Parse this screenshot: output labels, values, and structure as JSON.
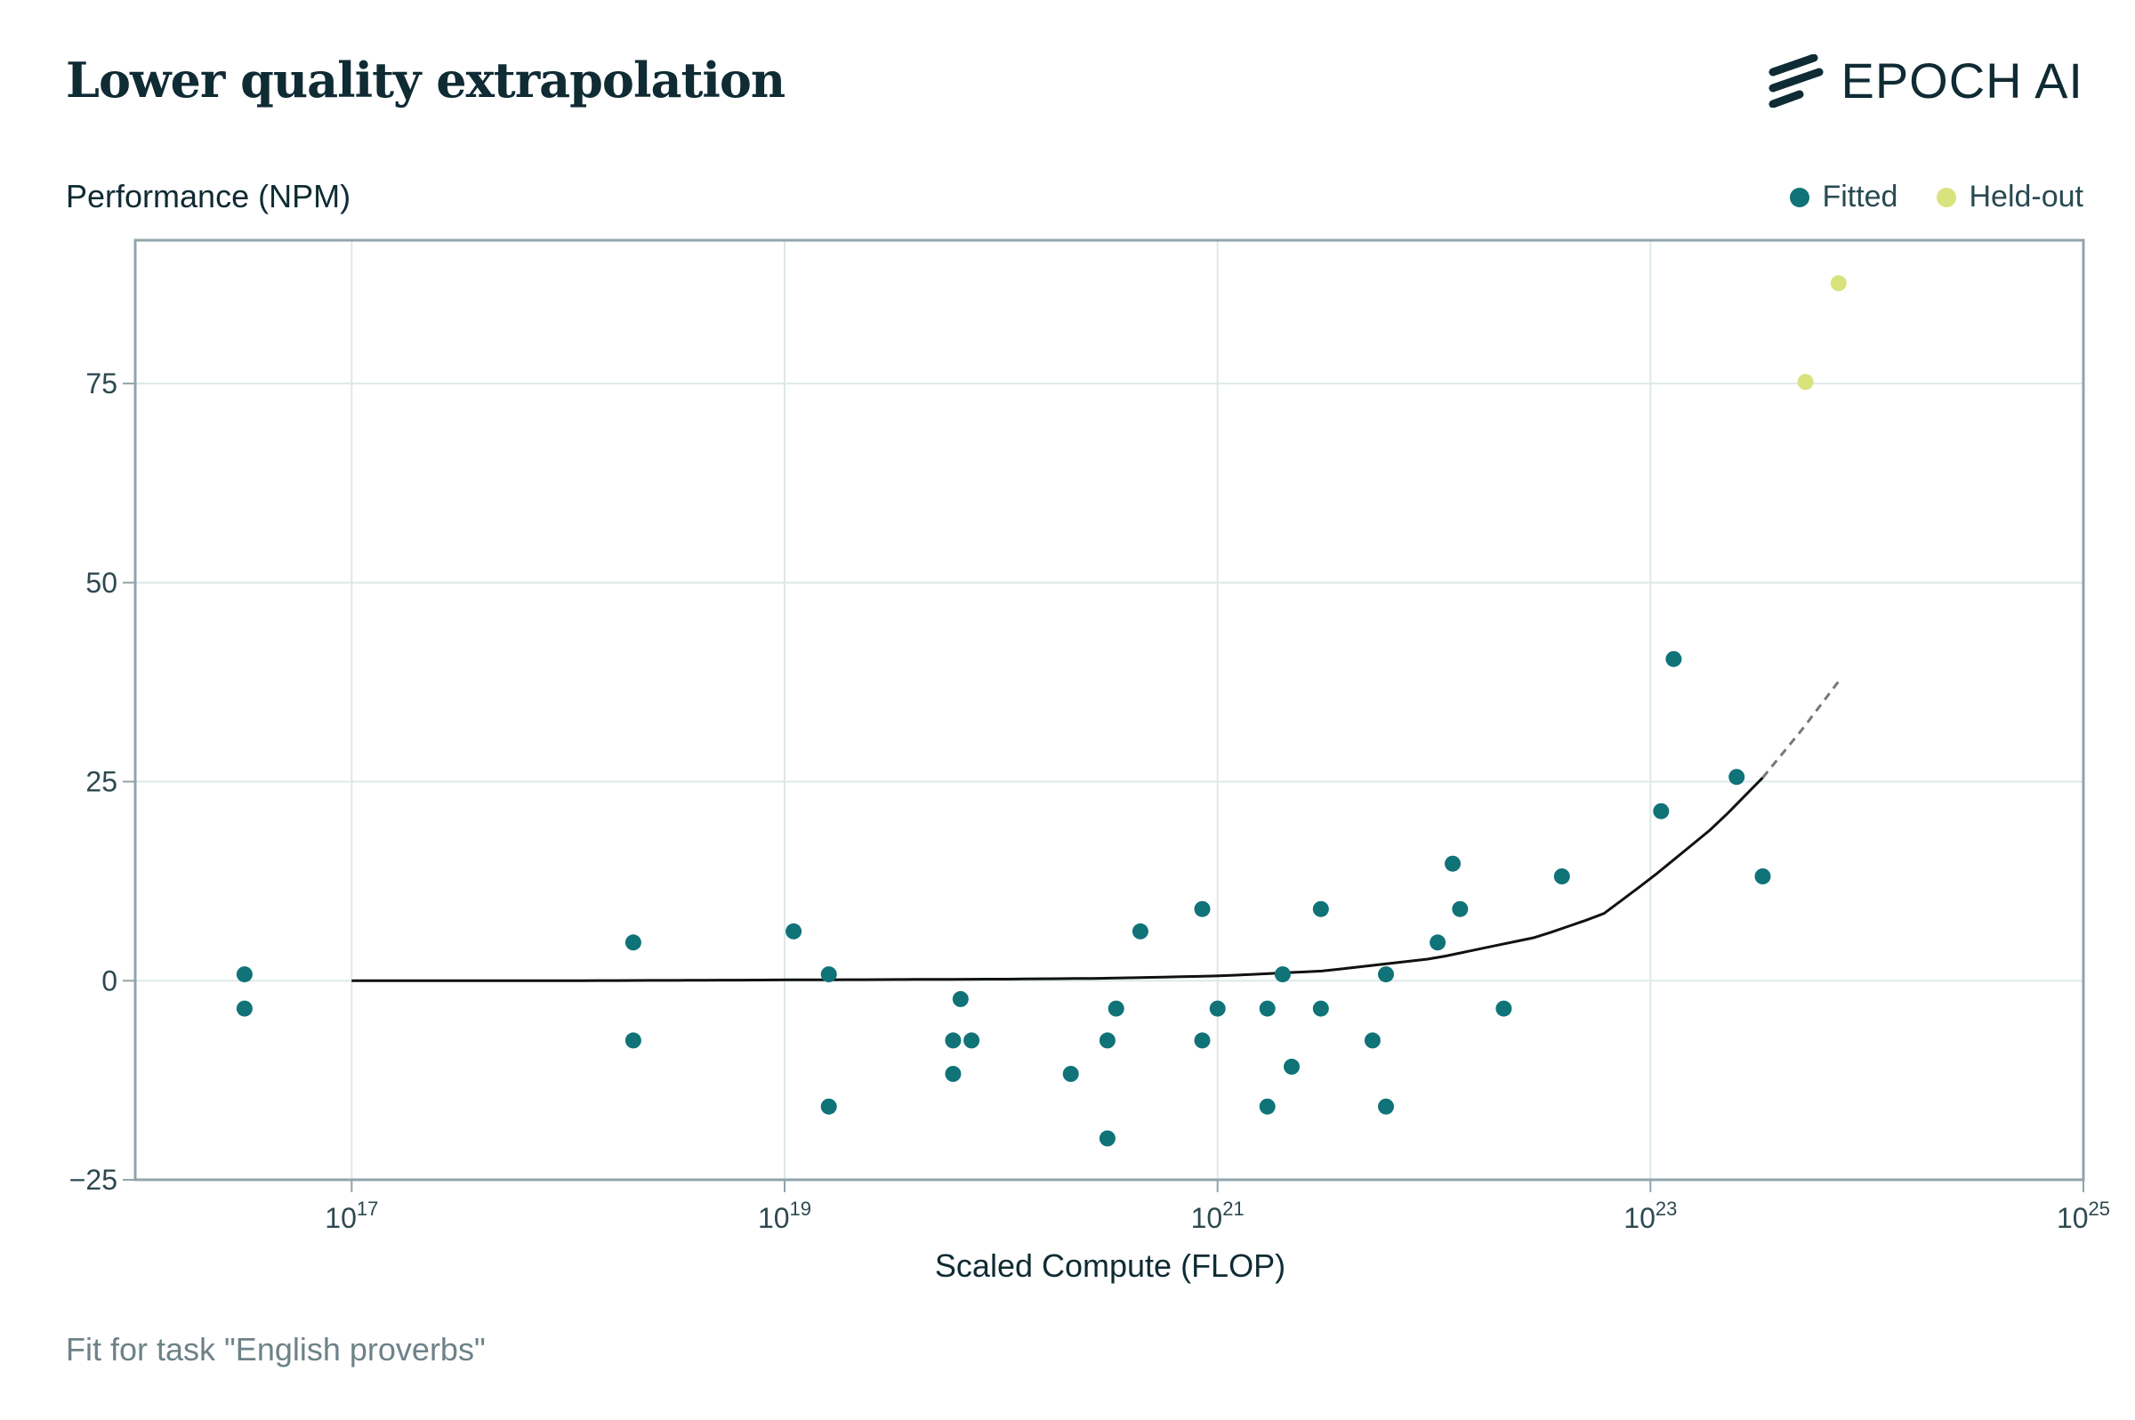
{
  "header": {
    "title": "Lower quality extrapolation",
    "brand": "EPOCH AI"
  },
  "caption": "Fit for task \"English proverbs\"",
  "colors": {
    "fitted": "#0f7378",
    "held_out": "#d8e37e",
    "curve": "#111111",
    "extrapolation": "#777777",
    "grid": "#dde8e8",
    "axis": "#90a4ab"
  },
  "chart_data": {
    "type": "scatter",
    "title": "Lower quality extrapolation",
    "xlabel": "Scaled Compute (FLOP)",
    "ylabel": "Performance (NPM)",
    "x_scale": "log",
    "xlim": [
      1e+16,
      1e+25
    ],
    "ylim": [
      -25,
      93
    ],
    "x_ticks": [
      1e+17,
      1e+19,
      1e+21,
      1e+23,
      1e+25
    ],
    "x_tick_labels": [
      {
        "base": "10",
        "exp": "17"
      },
      {
        "base": "10",
        "exp": "19"
      },
      {
        "base": "10",
        "exp": "21"
      },
      {
        "base": "10",
        "exp": "23"
      },
      {
        "base": "10",
        "exp": "25"
      }
    ],
    "y_ticks": [
      -25,
      0,
      25,
      50,
      75
    ],
    "y_tick_labels": [
      "−25",
      "0",
      "25",
      "50",
      "75"
    ],
    "grid": true,
    "legend_position": "top-right",
    "series": [
      {
        "name": "Fitted",
        "color": "#0f7378",
        "points": [
          [
            3.2e+16,
            0.8
          ],
          [
            3.2e+16,
            -3.5
          ],
          [
            2e+18,
            4.8
          ],
          [
            2e+18,
            -7.5
          ],
          [
            1.1e+19,
            6.2
          ],
          [
            1.6e+19,
            0.8
          ],
          [
            1.6e+19,
            -15.8
          ],
          [
            6.5e+19,
            -2.3
          ],
          [
            6e+19,
            -7.5
          ],
          [
            7.3e+19,
            -7.5
          ],
          [
            6e+19,
            -11.7
          ],
          [
            2.1e+20,
            -11.7
          ],
          [
            3.1e+20,
            -7.5
          ],
          [
            3.4e+20,
            -3.5
          ],
          [
            4.4e+20,
            6.2
          ],
          [
            3.1e+20,
            -19.8
          ],
          [
            8.5e+20,
            9.0
          ],
          [
            8.5e+20,
            -7.5
          ],
          [
            1e+21,
            -3.5
          ],
          [
            1.7e+21,
            -3.5
          ],
          [
            2e+21,
            0.8
          ],
          [
            2.2e+21,
            -10.8
          ],
          [
            1.7e+21,
            -15.8
          ],
          [
            3e+21,
            9.0
          ],
          [
            3e+21,
            -3.5
          ],
          [
            5.2e+21,
            -7.5
          ],
          [
            6e+21,
            0.8
          ],
          [
            6e+21,
            -15.8
          ],
          [
            1.04e+22,
            4.8
          ],
          [
            1.22e+22,
            14.7
          ],
          [
            1.32e+22,
            9.0
          ],
          [
            2.1e+22,
            -3.5
          ],
          [
            3.9e+22,
            13.1
          ],
          [
            1.12e+23,
            21.3
          ],
          [
            1.28e+23,
            40.4
          ],
          [
            2.5e+23,
            25.6
          ],
          [
            3.3e+23,
            13.1
          ]
        ]
      },
      {
        "name": "Held-out",
        "color": "#d8e37e",
        "points": [
          [
            5.2e+23,
            75.2
          ],
          [
            7.4e+23,
            87.6
          ]
        ]
      }
    ],
    "fit_curve": {
      "fitted_range": [
        1e+17,
        3.3e+23
      ],
      "extrapolated_range": [
        3.3e+23,
        7.4e+23
      ],
      "points": [
        [
          1e+17,
          0.0
        ],
        [
          1e+18,
          0.0
        ],
        [
          1e+19,
          0.1
        ],
        [
          1e+20,
          0.2
        ],
        [
          3e+20,
          0.3
        ],
        [
          1e+21,
          0.6
        ],
        [
          3e+21,
          1.2
        ],
        [
          1e+22,
          2.8
        ],
        [
          3e+22,
          5.5
        ],
        [
          6e+22,
          8.3
        ],
        [
          1e+23,
          12.8
        ],
        [
          2e+23,
          19.5
        ],
        [
          3.3e+23,
          25.5
        ],
        [
          5e+23,
          31.5
        ],
        [
          7.4e+23,
          37.6
        ]
      ]
    }
  }
}
